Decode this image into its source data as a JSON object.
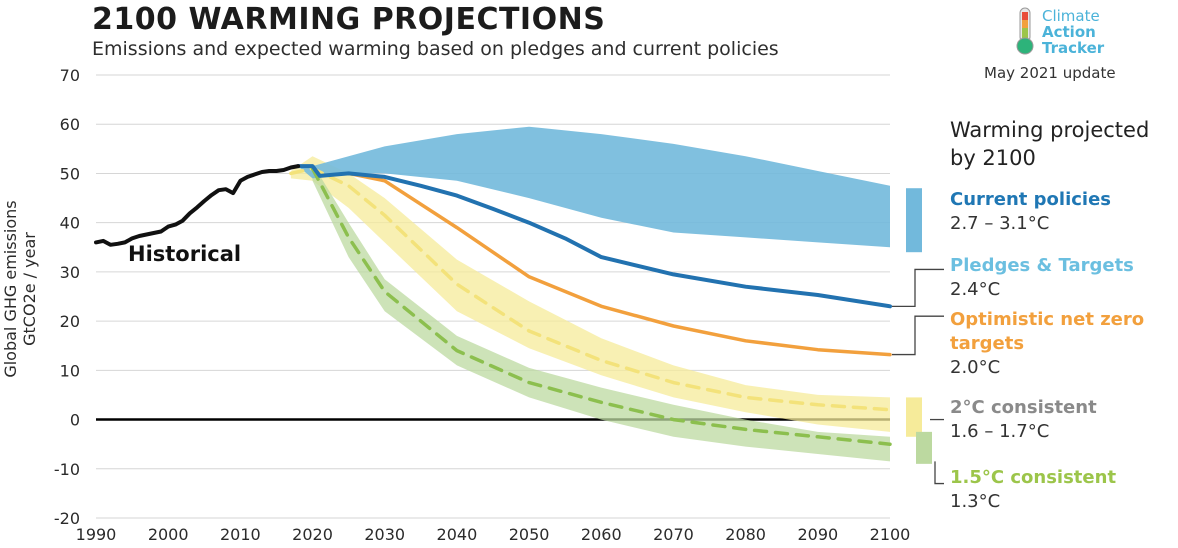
{
  "header": {
    "title": "2100 WARMING PROJECTIONS",
    "subtitle": "Emissions and expected warming based on pledges and current policies",
    "brand_line1": "Climate",
    "brand_line2": "Action",
    "brand_line3": "Tracker",
    "update": "May 2021 update"
  },
  "legend": {
    "title": "Warming projected by 2100",
    "items": [
      {
        "name": "Current policies",
        "range": "2.7 – 3.1°C",
        "color": "#1f77b4"
      },
      {
        "name": "Pledges & Targets",
        "range": "2.4°C",
        "color": "#6bbfe0"
      },
      {
        "name": "Optimistic net zero targets",
        "range": "2.0°C",
        "color": "#f2a03d"
      },
      {
        "name": "2°C consistent",
        "range": "1.6 – 1.7°C",
        "color": "#8a8a8a"
      },
      {
        "name": "1.5°C consistent",
        "range": "1.3°C",
        "color": "#9cc54a"
      }
    ]
  },
  "colors": {
    "historical": "#111111",
    "current_band": "#72b9dc",
    "pledges_line": "#2272b0",
    "optimistic_line": "#f2a03d",
    "two_deg_band": "#f6eb9a",
    "two_deg_line": "#f3e27a",
    "one5_band": "#bcd9a0",
    "one5_line": "#8cbf4e",
    "grid": "#d6d6d6"
  },
  "chart_data": {
    "type": "line",
    "ylabel": "Global GHG emissions GtCO2e / year",
    "xlim": [
      1990,
      2100
    ],
    "ylim": [
      -20,
      70
    ],
    "xticks": [
      1990,
      2000,
      2010,
      2020,
      2030,
      2040,
      2050,
      2060,
      2070,
      2080,
      2090,
      2100
    ],
    "yticks": [
      -20,
      -10,
      0,
      10,
      20,
      30,
      40,
      50,
      60,
      70
    ],
    "annotations": [
      "Historical"
    ],
    "series": [
      {
        "name": "Historical",
        "kind": "line",
        "x": [
          1990,
          1991,
          1992,
          1993,
          1994,
          1995,
          1996,
          1997,
          1998,
          1999,
          2000,
          2001,
          2002,
          2003,
          2004,
          2005,
          2006,
          2007,
          2008,
          2009,
          2010,
          2011,
          2012,
          2013,
          2014,
          2015,
          2016,
          2017,
          2018
        ],
        "y": [
          36,
          36.3,
          35.5,
          35.7,
          36,
          36.8,
          37.3,
          37.6,
          37.9,
          38.2,
          39.2,
          39.6,
          40.4,
          41.9,
          43.1,
          44.4,
          45.6,
          46.6,
          46.8,
          46.0,
          48.5,
          49.3,
          49.8,
          50.3,
          50.5,
          50.5,
          50.7,
          51.2,
          51.5
        ]
      },
      {
        "name": "Current policies",
        "kind": "band",
        "x": [
          2018,
          2020,
          2025,
          2030,
          2040,
          2050,
          2060,
          2070,
          2080,
          2090,
          2100
        ],
        "upper": [
          51.5,
          51.5,
          53.5,
          55.5,
          58,
          59.5,
          58,
          56,
          53.5,
          50.5,
          47.5
        ],
        "lower": [
          51.5,
          49,
          50,
          50,
          48.5,
          45,
          41,
          38,
          37,
          36,
          35
        ]
      },
      {
        "name": "Pledges & Targets",
        "kind": "line",
        "x": [
          2018,
          2020,
          2021,
          2025,
          2030,
          2035,
          2040,
          2045,
          2050,
          2055,
          2060,
          2070,
          2080,
          2090,
          2100
        ],
        "y": [
          51.5,
          51.5,
          49.5,
          50,
          49.3,
          47.5,
          45.5,
          42.8,
          40,
          36.8,
          33,
          29.5,
          27,
          25.3,
          23
        ]
      },
      {
        "name": "Optimistic net zero targets",
        "kind": "line",
        "x": [
          2025,
          2030,
          2040,
          2050,
          2060,
          2070,
          2080,
          2090,
          2100
        ],
        "y": [
          50,
          48.5,
          39,
          29,
          23,
          19,
          16,
          14.2,
          13.2
        ]
      },
      {
        "name": "2°C consistent",
        "kind": "band_with_dashed_line",
        "x": [
          2017,
          2020,
          2025,
          2030,
          2040,
          2050,
          2060,
          2070,
          2080,
          2090,
          2100
        ],
        "upper": [
          50.5,
          53.5,
          50,
          45,
          32.5,
          24,
          16.5,
          11,
          7,
          5,
          4.5
        ],
        "lower": [
          49,
          48.5,
          43,
          36,
          22,
          14.5,
          9,
          4.5,
          1.5,
          -1,
          -2.5
        ],
        "mid": [
          50,
          51,
          47.5,
          41.5,
          27.5,
          18,
          12,
          7.5,
          4.5,
          3,
          2
        ]
      },
      {
        "name": "1.5°C consistent",
        "kind": "band_with_dashed_line",
        "x": [
          2020,
          2025,
          2030,
          2040,
          2050,
          2060,
          2070,
          2080,
          2090,
          2100
        ],
        "upper": [
          52,
          40,
          28.5,
          17,
          10.5,
          6.5,
          3,
          0,
          -2.5,
          -3.5
        ],
        "lower": [
          48.5,
          33,
          22,
          11,
          4.5,
          0,
          -3.5,
          -5.5,
          -7,
          -8.5
        ],
        "mid": [
          51,
          37,
          26,
          14,
          7.5,
          3.5,
          0,
          -2,
          -3.5,
          -5
        ]
      }
    ]
  }
}
